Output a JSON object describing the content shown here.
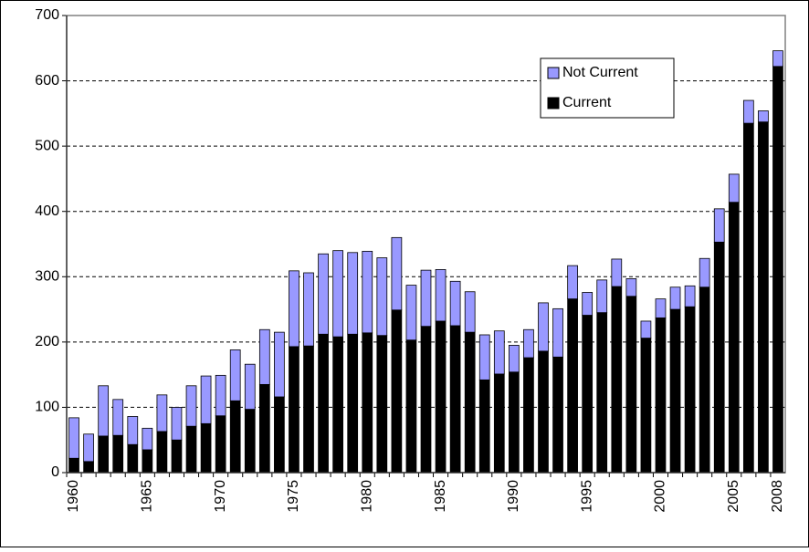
{
  "chart_data": {
    "type": "stacked_bar",
    "categories": [
      "1960",
      null,
      null,
      null,
      null,
      "1965",
      null,
      null,
      null,
      null,
      "1970",
      null,
      null,
      null,
      null,
      "1975",
      null,
      null,
      null,
      null,
      "1980",
      null,
      null,
      null,
      null,
      "1985",
      null,
      null,
      null,
      null,
      "1990",
      null,
      null,
      null,
      null,
      "1995",
      null,
      null,
      null,
      null,
      "2000",
      null,
      null,
      null,
      null,
      "2005",
      null,
      null,
      "2008"
    ],
    "series": [
      {
        "name": "Current",
        "color": "#000000",
        "values": [
          22,
          17,
          56,
          57,
          43,
          35,
          63,
          50,
          71,
          75,
          87,
          110,
          97,
          135,
          116,
          193,
          194,
          212,
          208,
          212,
          214,
          210,
          249,
          203,
          224,
          232,
          225,
          215,
          142,
          151,
          154,
          176,
          186,
          177,
          266,
          241,
          245,
          285,
          270,
          206,
          237,
          250,
          254,
          284,
          353,
          414,
          535,
          537,
          622
        ]
      },
      {
        "name": "Not Current",
        "color": "#9999ff",
        "values": [
          62,
          42,
          77,
          55,
          43,
          33,
          56,
          50,
          62,
          73,
          62,
          78,
          69,
          84,
          99,
          116,
          112,
          123,
          132,
          125,
          125,
          119,
          111,
          84,
          86,
          79,
          68,
          62,
          69,
          66,
          41,
          43,
          74,
          74,
          51,
          35,
          50,
          42,
          27,
          26,
          29,
          34,
          32,
          44,
          51,
          43,
          35,
          17,
          24
        ]
      }
    ],
    "ylim": [
      0,
      700
    ],
    "yticks": [
      0,
      100,
      200,
      300,
      400,
      500,
      600,
      700
    ],
    "grid": true,
    "legend": "upper right"
  }
}
